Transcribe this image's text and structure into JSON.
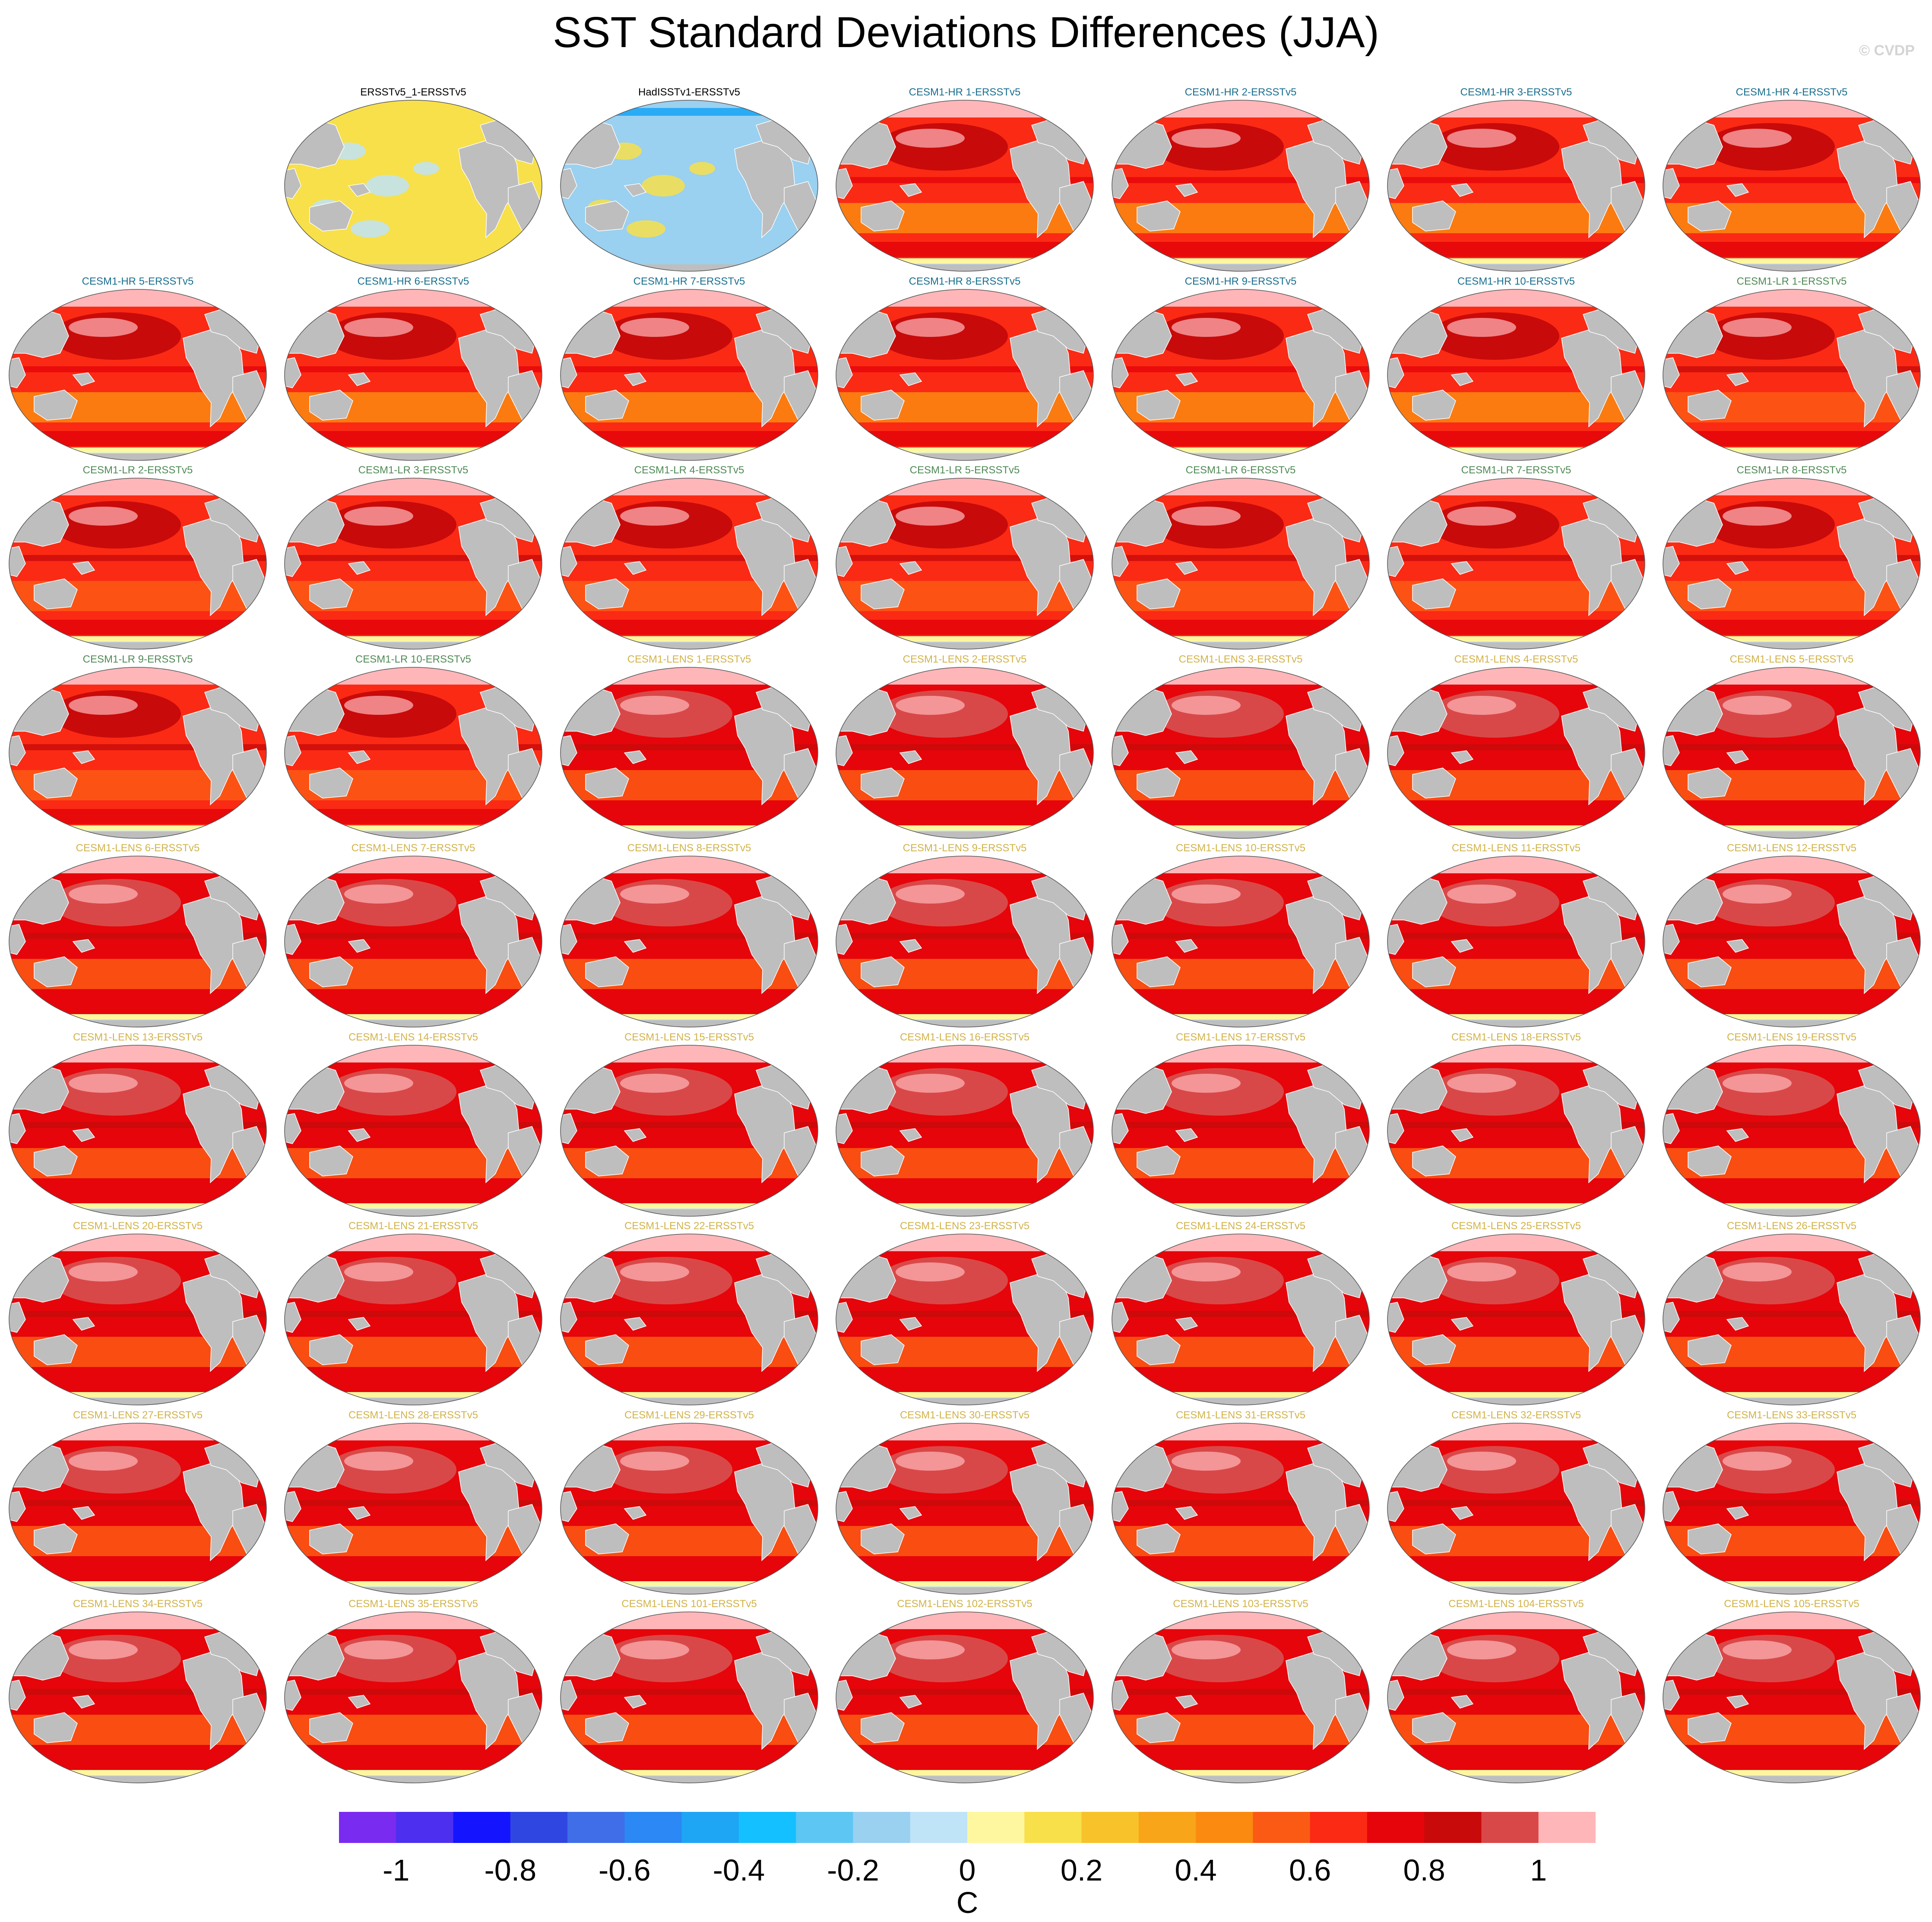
{
  "title": "SST Standard Deviations Differences (JJA)",
  "credit": "© CVDP",
  "chart_data": {
    "type": "heatmap",
    "title": "SST Standard Deviations Differences (JJA)",
    "map_projection": "global Robinson, Pacific-centred",
    "layout": {
      "columns": 7,
      "rows": 9,
      "first_row_empty_slots": 1
    },
    "panels": [
      {
        "label": "ERSSTv5_1-ERSSTv5",
        "group": "obs",
        "mean_difference": 0.1
      },
      {
        "label": "HadISSTv1-ERSSTv5",
        "group": "obs",
        "mean_difference": -0.15
      },
      {
        "label": "CESM1-HR 1-ERSSTv5",
        "group": "hr",
        "mean_difference": 0.6
      },
      {
        "label": "CESM1-HR 2-ERSSTv5",
        "group": "hr",
        "mean_difference": 0.6
      },
      {
        "label": "CESM1-HR 3-ERSSTv5",
        "group": "hr",
        "mean_difference": 0.6
      },
      {
        "label": "CESM1-HR 4-ERSSTv5",
        "group": "hr",
        "mean_difference": 0.6
      },
      {
        "label": "CESM1-HR 5-ERSSTv5",
        "group": "hr",
        "mean_difference": 0.6
      },
      {
        "label": "CESM1-HR 6-ERSSTv5",
        "group": "hr",
        "mean_difference": 0.6
      },
      {
        "label": "CESM1-HR 7-ERSSTv5",
        "group": "hr",
        "mean_difference": 0.6
      },
      {
        "label": "CESM1-HR 8-ERSSTv5",
        "group": "hr",
        "mean_difference": 0.6
      },
      {
        "label": "CESM1-HR 9-ERSSTv5",
        "group": "hr",
        "mean_difference": 0.6
      },
      {
        "label": "CESM1-HR 10-ERSSTv5",
        "group": "hr",
        "mean_difference": 0.6
      },
      {
        "label": "CESM1-LR 1-ERSSTv5",
        "group": "lr",
        "mean_difference": 0.65
      },
      {
        "label": "CESM1-LR 2-ERSSTv5",
        "group": "lr",
        "mean_difference": 0.65
      },
      {
        "label": "CESM1-LR 3-ERSSTv5",
        "group": "lr",
        "mean_difference": 0.65
      },
      {
        "label": "CESM1-LR 4-ERSSTv5",
        "group": "lr",
        "mean_difference": 0.65
      },
      {
        "label": "CESM1-LR 5-ERSSTv5",
        "group": "lr",
        "mean_difference": 0.65
      },
      {
        "label": "CESM1-LR 6-ERSSTv5",
        "group": "lr",
        "mean_difference": 0.65
      },
      {
        "label": "CESM1-LR 7-ERSSTv5",
        "group": "lr",
        "mean_difference": 0.65
      },
      {
        "label": "CESM1-LR 8-ERSSTv5",
        "group": "lr",
        "mean_difference": 0.65
      },
      {
        "label": "CESM1-LR 9-ERSSTv5",
        "group": "lr",
        "mean_difference": 0.65
      },
      {
        "label": "CESM1-LR 10-ERSSTv5",
        "group": "lr",
        "mean_difference": 0.65
      },
      {
        "label": "CESM1-LENS 1-ERSSTv5",
        "group": "lens",
        "mean_difference": 0.7
      },
      {
        "label": "CESM1-LENS 2-ERSSTv5",
        "group": "lens",
        "mean_difference": 0.7
      },
      {
        "label": "CESM1-LENS 3-ERSSTv5",
        "group": "lens",
        "mean_difference": 0.7
      },
      {
        "label": "CESM1-LENS 4-ERSSTv5",
        "group": "lens",
        "mean_difference": 0.7
      },
      {
        "label": "CESM1-LENS 5-ERSSTv5",
        "group": "lens",
        "mean_difference": 0.7
      },
      {
        "label": "CESM1-LENS 6-ERSSTv5",
        "group": "lens",
        "mean_difference": 0.7
      },
      {
        "label": "CESM1-LENS 7-ERSSTv5",
        "group": "lens",
        "mean_difference": 0.7
      },
      {
        "label": "CESM1-LENS 8-ERSSTv5",
        "group": "lens",
        "mean_difference": 0.7
      },
      {
        "label": "CESM1-LENS 9-ERSSTv5",
        "group": "lens",
        "mean_difference": 0.7
      },
      {
        "label": "CESM1-LENS 10-ERSSTv5",
        "group": "lens",
        "mean_difference": 0.7
      },
      {
        "label": "CESM1-LENS 11-ERSSTv5",
        "group": "lens",
        "mean_difference": 0.7
      },
      {
        "label": "CESM1-LENS 12-ERSSTv5",
        "group": "lens",
        "mean_difference": 0.7
      },
      {
        "label": "CESM1-LENS 13-ERSSTv5",
        "group": "lens",
        "mean_difference": 0.7
      },
      {
        "label": "CESM1-LENS 14-ERSSTv5",
        "group": "lens",
        "mean_difference": 0.7
      },
      {
        "label": "CESM1-LENS 15-ERSSTv5",
        "group": "lens",
        "mean_difference": 0.7
      },
      {
        "label": "CESM1-LENS 16-ERSSTv5",
        "group": "lens",
        "mean_difference": 0.7
      },
      {
        "label": "CESM1-LENS 17-ERSSTv5",
        "group": "lens",
        "mean_difference": 0.7
      },
      {
        "label": "CESM1-LENS 18-ERSSTv5",
        "group": "lens",
        "mean_difference": 0.7
      },
      {
        "label": "CESM1-LENS 19-ERSSTv5",
        "group": "lens",
        "mean_difference": 0.7
      },
      {
        "label": "CESM1-LENS 20-ERSSTv5",
        "group": "lens",
        "mean_difference": 0.7
      },
      {
        "label": "CESM1-LENS 21-ERSSTv5",
        "group": "lens",
        "mean_difference": 0.7
      },
      {
        "label": "CESM1-LENS 22-ERSSTv5",
        "group": "lens",
        "mean_difference": 0.7
      },
      {
        "label": "CESM1-LENS 23-ERSSTv5",
        "group": "lens",
        "mean_difference": 0.7
      },
      {
        "label": "CESM1-LENS 24-ERSSTv5",
        "group": "lens",
        "mean_difference": 0.7
      },
      {
        "label": "CESM1-LENS 25-ERSSTv5",
        "group": "lens",
        "mean_difference": 0.7
      },
      {
        "label": "CESM1-LENS 26-ERSSTv5",
        "group": "lens",
        "mean_difference": 0.7
      },
      {
        "label": "CESM1-LENS 27-ERSSTv5",
        "group": "lens",
        "mean_difference": 0.7
      },
      {
        "label": "CESM1-LENS 28-ERSSTv5",
        "group": "lens",
        "mean_difference": 0.7
      },
      {
        "label": "CESM1-LENS 29-ERSSTv5",
        "group": "lens",
        "mean_difference": 0.7
      },
      {
        "label": "CESM1-LENS 30-ERSSTv5",
        "group": "lens",
        "mean_difference": 0.7
      },
      {
        "label": "CESM1-LENS 31-ERSSTv5",
        "group": "lens",
        "mean_difference": 0.7
      },
      {
        "label": "CESM1-LENS 32-ERSSTv5",
        "group": "lens",
        "mean_difference": 0.7
      },
      {
        "label": "CESM1-LENS 33-ERSSTv5",
        "group": "lens",
        "mean_difference": 0.7
      },
      {
        "label": "CESM1-LENS 34-ERSSTv5",
        "group": "lens",
        "mean_difference": 0.7
      },
      {
        "label": "CESM1-LENS 35-ERSSTv5",
        "group": "lens",
        "mean_difference": 0.7
      },
      {
        "label": "CESM1-LENS 101-ERSSTv5",
        "group": "lens",
        "mean_difference": 0.7
      },
      {
        "label": "CESM1-LENS 102-ERSSTv5",
        "group": "lens",
        "mean_difference": 0.7
      },
      {
        "label": "CESM1-LENS 103-ERSSTv5",
        "group": "lens",
        "mean_difference": 0.7
      },
      {
        "label": "CESM1-LENS 104-ERSSTv5",
        "group": "lens",
        "mean_difference": 0.7
      },
      {
        "label": "CESM1-LENS 105-ERSSTv5",
        "group": "lens",
        "mean_difference": 0.7
      }
    ],
    "group_label_colors": {
      "obs": "#000000",
      "hr": "#1a6f8f",
      "lr": "#4f8a55",
      "lens": "#d2b34a"
    },
    "colorbar": {
      "unit": "C",
      "range": [
        -1.1,
        1.1
      ],
      "tick_labels": [
        "-1",
        "-0.8",
        "-0.6",
        "-0.4",
        "-0.2",
        "0",
        "0.2",
        "0.4",
        "0.6",
        "0.8",
        "1"
      ],
      "tick_values": [
        -1,
        -0.8,
        -0.6,
        -0.4,
        -0.2,
        0,
        0.2,
        0.4,
        0.6,
        0.8,
        1
      ],
      "colors": [
        "#7a2bf0",
        "#4d2ff0",
        "#1414ff",
        "#3046e0",
        "#3f6ee8",
        "#2b88f4",
        "#1ea6f5",
        "#14c0ff",
        "#5ec6f2",
        "#9ad0f0",
        "#bfe3f7",
        "#fff7a0",
        "#f7e04a",
        "#f8c22a",
        "#f8a51a",
        "#fa8a10",
        "#fb5a14",
        "#fb2a14",
        "#e6050a",
        "#c80a0a",
        "#d94848",
        "#ffb6b9"
      ]
    },
    "land_color": "#bebebe"
  }
}
